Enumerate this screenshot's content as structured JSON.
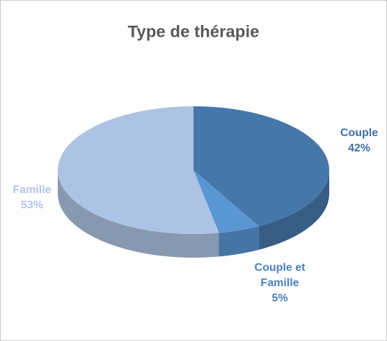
{
  "chart_data": {
    "type": "pie",
    "title": "Type de thérapie",
    "categories": [
      "Couple",
      "Couple et Famille",
      "Famille"
    ],
    "values": [
      42,
      5,
      53
    ],
    "value_labels": [
      "42%",
      "5%",
      "53%"
    ],
    "colors": [
      "#4677aa",
      "#5a96d2",
      "#adc3e3"
    ],
    "label_colors": [
      "#3f70a3",
      "#4a80ba",
      "#b1c6e6"
    ]
  }
}
